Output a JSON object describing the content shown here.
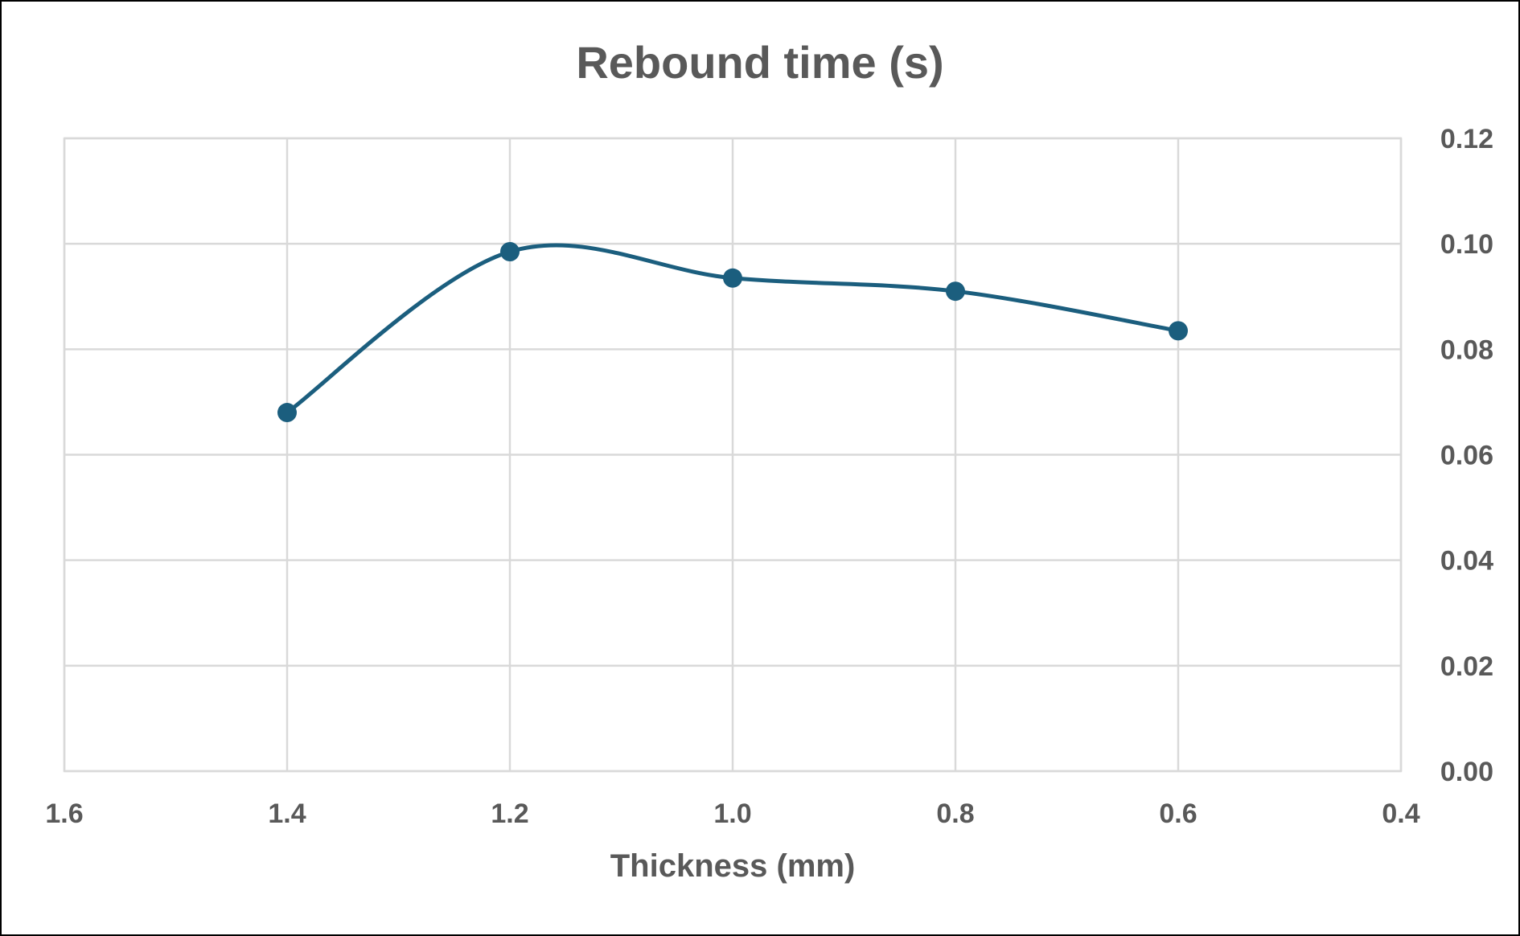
{
  "chart_data": {
    "type": "scatter",
    "title": "Rebound time (s)",
    "xlabel": "Thickness (mm)",
    "ylabel": "",
    "xlim": [
      1.6,
      0.4
    ],
    "x_reversed": true,
    "ylim": [
      0,
      0.12
    ],
    "y_axis_side": "right",
    "grid": true,
    "smooth_line": true,
    "x_ticks": [
      "1.6",
      "1.4",
      "1.2",
      "1.0",
      "0.8",
      "0.6",
      "0.4"
    ],
    "y_ticks": [
      "0.00",
      "0.02",
      "0.04",
      "0.06",
      "0.08",
      "0.10",
      "0.12"
    ],
    "series": [
      {
        "color": "#1b5e7e",
        "x": [
          1.4,
          1.2,
          1.0,
          0.8,
          0.6
        ],
        "y": [
          0.068,
          0.0985,
          0.0935,
          0.091,
          0.0835
        ]
      }
    ]
  }
}
